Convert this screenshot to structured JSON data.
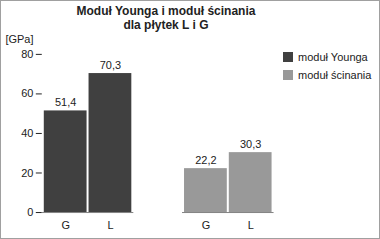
{
  "chart_data": {
    "type": "bar",
    "title": "Moduł Younga i moduł ścinania\ndla płytek L i G",
    "y_label": "[GPa]",
    "categories": [
      "G",
      "L",
      "G",
      "L"
    ],
    "series": [
      {
        "name": "moduł Younga",
        "color": "#404040",
        "values": [
          51.4,
          70.3,
          null,
          null
        ],
        "value_labels": [
          "51,4",
          "70,3",
          null,
          null
        ]
      },
      {
        "name": "moduł ścinania",
        "color": "#999999",
        "values": [
          null,
          null,
          22.2,
          30.3
        ],
        "value_labels": [
          null,
          null,
          "22,2",
          "30,3"
        ]
      }
    ],
    "ylim": [
      0,
      80
    ],
    "yticks": [
      0,
      20,
      40,
      60,
      80
    ],
    "grid": false,
    "legend": "right",
    "data_labels": true
  }
}
